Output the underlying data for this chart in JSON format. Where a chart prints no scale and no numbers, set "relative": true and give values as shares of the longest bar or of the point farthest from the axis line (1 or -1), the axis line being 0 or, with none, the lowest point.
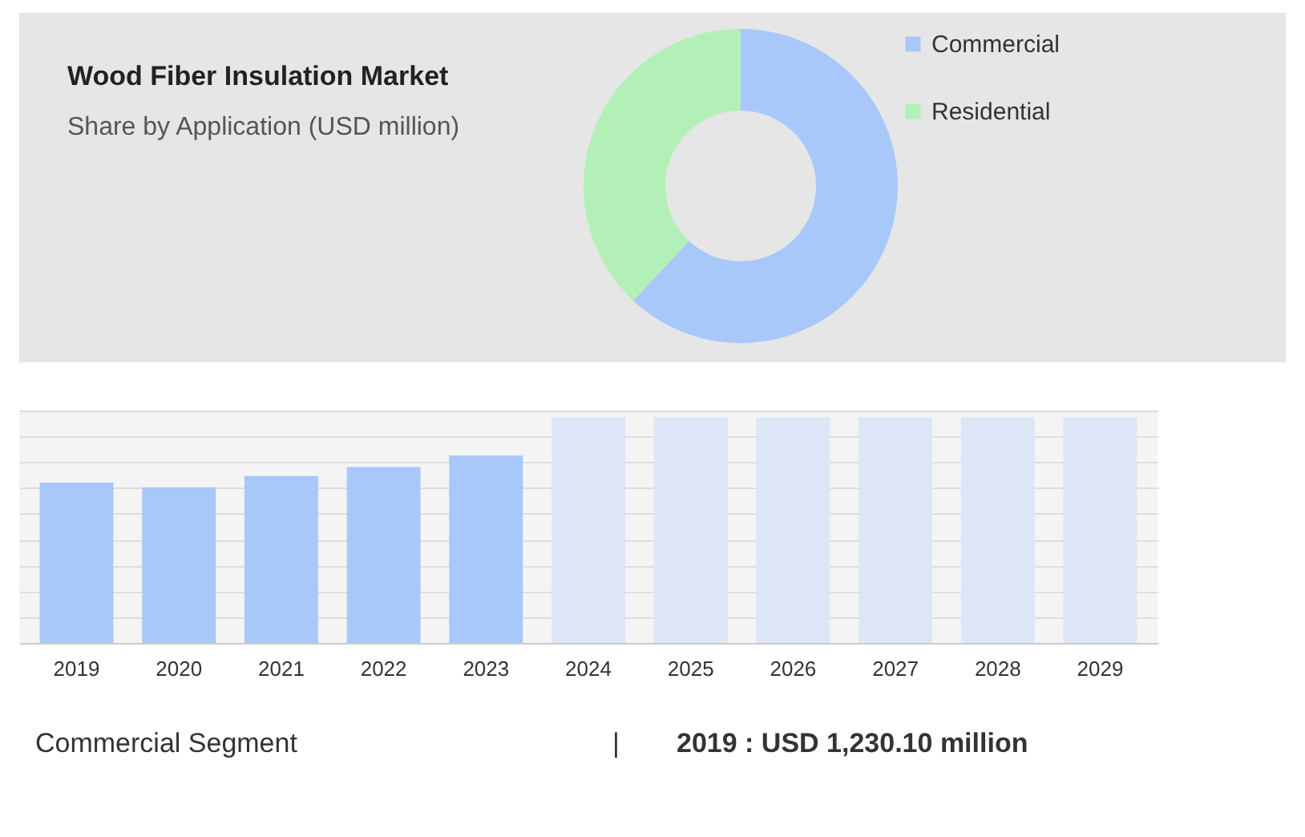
{
  "chart_data": [
    {
      "type": "donut",
      "title": "Wood Fiber Insulation Market",
      "subtitle": "Share by Application (USD million)",
      "categories": [
        "Commercial",
        "Residential"
      ],
      "values": [
        62,
        38
      ],
      "colors": [
        "#a8c8fa",
        "#b3f0b7"
      ],
      "legend": "top right"
    },
    {
      "type": "bar",
      "relative": true,
      "categories": [
        "2019",
        "2020",
        "2021",
        "2022",
        "2023",
        "2024",
        "2025",
        "2026",
        "2027",
        "2028",
        "2029"
      ],
      "values": [
        0.71,
        0.69,
        0.74,
        0.78,
        0.83,
        1,
        1,
        1,
        1,
        1,
        1
      ],
      "colors": [
        "#a8c8fa",
        "#a8c8fa",
        "#a8c8fa",
        "#a8c8fa",
        "#a8c8fa",
        "#dce6f6",
        "#dce6f6",
        "#dce6f6",
        "#dce6f6",
        "#dce6f6",
        "#dce6f6"
      ],
      "grid": true,
      "annotations": [
        "Commercial Segment",
        "|",
        "2019 : USD 1,230.10 million"
      ]
    }
  ]
}
